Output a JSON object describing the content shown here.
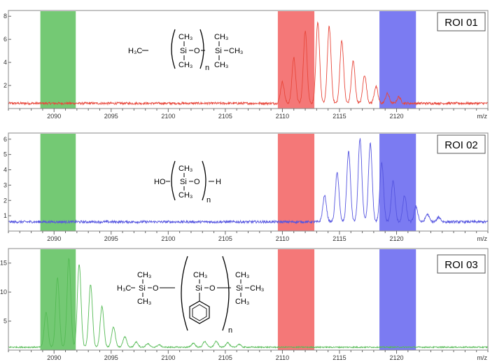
{
  "chart_data": [
    {
      "type": "line",
      "roi_label": "ROI 01",
      "line_color": "#e8483c",
      "xlabel": "m/z",
      "xlim": [
        2086,
        2128
      ],
      "ylim": [
        0,
        8.5
      ],
      "yticks": [
        2,
        4,
        6,
        8
      ],
      "xticks": [
        2090,
        2095,
        2100,
        2105,
        2110,
        2115,
        2120
      ],
      "x_unit_label": "m/z",
      "baseline": 0.45,
      "noise": 0.1,
      "peaks": [
        {
          "x": 2110.0,
          "y": 2.3
        },
        {
          "x": 2111.0,
          "y": 4.4
        },
        {
          "x": 2112.0,
          "y": 6.7
        },
        {
          "x": 2113.1,
          "y": 7.4
        },
        {
          "x": 2114.1,
          "y": 7.1
        },
        {
          "x": 2115.2,
          "y": 5.9
        },
        {
          "x": 2116.2,
          "y": 4.1
        },
        {
          "x": 2117.2,
          "y": 2.9
        },
        {
          "x": 2118.2,
          "y": 1.9
        },
        {
          "x": 2119.2,
          "y": 1.3
        },
        {
          "x": 2120.2,
          "y": 1.0
        }
      ],
      "regions": [
        {
          "name": "green",
          "x0": 2088.8,
          "x1": 2091.9,
          "color": "#5cbf5c"
        },
        {
          "name": "red",
          "x0": 2109.6,
          "x1": 2112.8,
          "color": "#f26060"
        },
        {
          "name": "blue",
          "x0": 2118.5,
          "x1": 2121.7,
          "color": "#6464f0"
        }
      ]
    },
    {
      "type": "line",
      "roi_label": "ROI 02",
      "line_color": "#5555e0",
      "xlabel": "m/z",
      "xlim": [
        2086,
        2128
      ],
      "ylim": [
        0,
        6.4
      ],
      "yticks": [
        1,
        2,
        3,
        4,
        5,
        6
      ],
      "xticks": [
        2090,
        2095,
        2100,
        2105,
        2110,
        2115,
        2120
      ],
      "x_unit_label": "m/z",
      "baseline": 0.6,
      "noise": 0.08,
      "peaks": [
        {
          "x": 2113.7,
          "y": 2.3
        },
        {
          "x": 2114.8,
          "y": 3.8
        },
        {
          "x": 2115.8,
          "y": 5.2
        },
        {
          "x": 2116.8,
          "y": 6.0
        },
        {
          "x": 2117.7,
          "y": 5.7
        },
        {
          "x": 2118.7,
          "y": 4.5
        },
        {
          "x": 2119.7,
          "y": 3.3
        },
        {
          "x": 2120.7,
          "y": 2.3
        },
        {
          "x": 2121.7,
          "y": 1.6
        },
        {
          "x": 2122.7,
          "y": 1.1
        },
        {
          "x": 2123.7,
          "y": 0.9
        }
      ],
      "regions": [
        {
          "name": "green",
          "x0": 2088.8,
          "x1": 2091.9,
          "color": "#5cbf5c"
        },
        {
          "name": "red",
          "x0": 2109.6,
          "x1": 2112.8,
          "color": "#f26060"
        },
        {
          "name": "blue",
          "x0": 2118.5,
          "x1": 2121.7,
          "color": "#6464f0"
        }
      ]
    },
    {
      "type": "line",
      "roi_label": "ROI 03",
      "line_color": "#55bb55",
      "xlabel": "m/z",
      "xlim": [
        2086,
        2128
      ],
      "ylim": [
        0,
        17.5
      ],
      "yticks": [
        5,
        10,
        15
      ],
      "xticks": [
        2090,
        2095,
        2100,
        2105,
        2110,
        2115,
        2120
      ],
      "x_unit_label": "m/z",
      "baseline": 0.5,
      "noise": 0.1,
      "peaks": [
        {
          "x": 2089.3,
          "y": 6.5
        },
        {
          "x": 2090.3,
          "y": 12.5
        },
        {
          "x": 2091.3,
          "y": 15.8
        },
        {
          "x": 2092.2,
          "y": 14.8
        },
        {
          "x": 2093.2,
          "y": 11.3
        },
        {
          "x": 2094.2,
          "y": 7.5
        },
        {
          "x": 2095.2,
          "y": 4.0
        },
        {
          "x": 2096.2,
          "y": 2.3
        },
        {
          "x": 2097.2,
          "y": 1.4
        },
        {
          "x": 2098.2,
          "y": 1.1
        },
        {
          "x": 2099.2,
          "y": 0.9
        },
        {
          "x": 2102.2,
          "y": 1.2
        },
        {
          "x": 2103.2,
          "y": 1.5
        },
        {
          "x": 2104.2,
          "y": 1.5
        },
        {
          "x": 2105.2,
          "y": 1.3
        },
        {
          "x": 2106.2,
          "y": 1.0
        }
      ],
      "regions": [
        {
          "name": "green",
          "x0": 2088.8,
          "x1": 2091.9,
          "color": "#5cbf5c"
        },
        {
          "name": "red",
          "x0": 2109.6,
          "x1": 2112.8,
          "color": "#f26060"
        },
        {
          "name": "blue",
          "x0": 2118.5,
          "x1": 2121.7,
          "color": "#6464f0"
        }
      ]
    }
  ],
  "structures": {
    "roi01": {
      "left_group": "H₃C",
      "si_top": "CH₃",
      "si": "Si",
      "o": "O",
      "si_bottom": "CH₃",
      "n": "n",
      "right_si_top": "CH₃",
      "right_si": "Si",
      "right_ch3": "CH₃",
      "right_si_bottom": "CH₃"
    },
    "roi02": {
      "left_group": "HO",
      "si_top": "CH₃",
      "si": "Si",
      "o": "O",
      "si_bottom": "CH₃",
      "right_group": "H",
      "n": "n"
    },
    "roi03": {
      "left_group": "H₃C",
      "left_si_top": "CH₃",
      "left_si": "Si",
      "o1": "O",
      "left_si_bottom": "CH₃",
      "mid_si_top": "CH₃",
      "mid_si": "Si",
      "o2": "O",
      "n": "n",
      "right_si_top": "CH₃",
      "right_si": "Si",
      "right_ch3": "CH₃",
      "right_si_bottom": "CH₃"
    }
  }
}
